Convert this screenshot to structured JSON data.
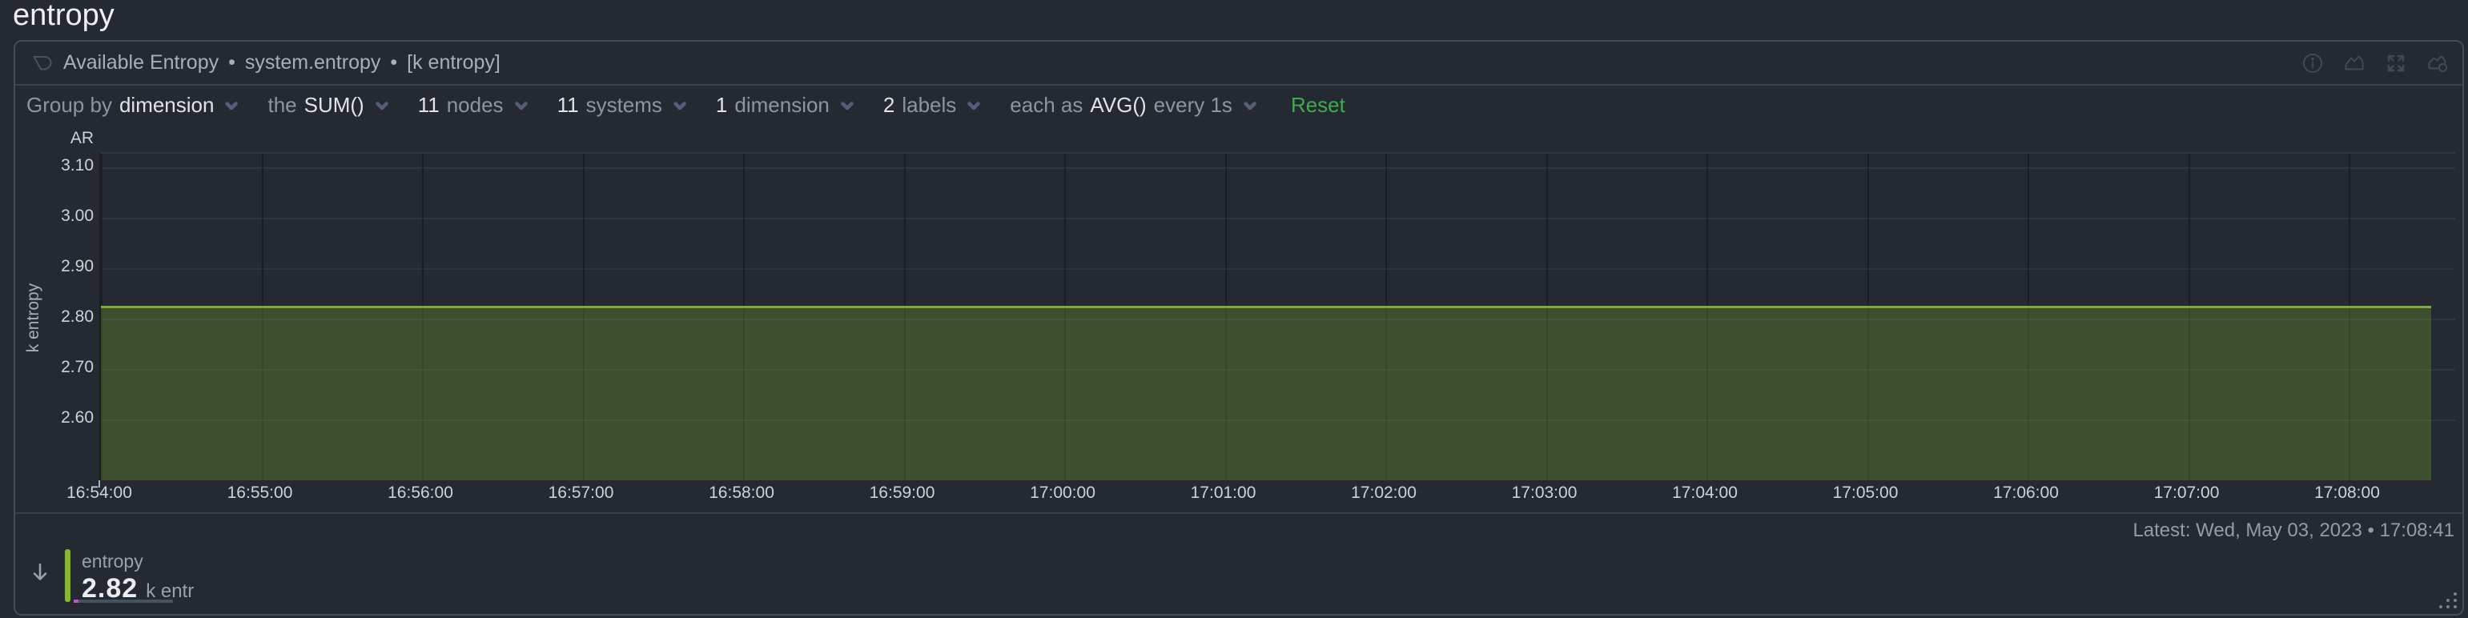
{
  "page": {
    "title": "entropy"
  },
  "header": {
    "logo_icon": "netdata-logo-icon",
    "title": "Available Entropy",
    "sep1": "•",
    "context": "system.entropy",
    "sep2": "•",
    "units": "[k entropy]"
  },
  "toolbar": {
    "group_by_label": "Group by",
    "group_by_value": "dimension",
    "the_label": "the",
    "aggregation_value": "SUM()",
    "nodes_value": "11",
    "nodes_label": "nodes",
    "systems_value": "11",
    "systems_label": "systems",
    "dimensions_value": "1",
    "dimensions_label": "dimension",
    "labels_value": "2",
    "labels_label": "labels",
    "each_as_label": "each as",
    "time_aggregation_value": "AVG()",
    "every_label": "every 1s",
    "reset_label": "Reset"
  },
  "chart_data": {
    "type": "area",
    "title": "Available Entropy",
    "context": "system.entropy",
    "ylabel": "k entropy",
    "anomaly_row_label": "AR",
    "y_ticks": [
      "3.10",
      "3.00",
      "2.90",
      "2.80",
      "2.70",
      "2.60"
    ],
    "x_ticks": [
      "16:54:00",
      "16:55:00",
      "16:56:00",
      "16:57:00",
      "16:58:00",
      "16:59:00",
      "17:00:00",
      "17:01:00",
      "17:02:00",
      "17:03:00",
      "17:04:00",
      "17:05:00",
      "17:06:00",
      "17:07:00",
      "17:08:00"
    ],
    "grid": true,
    "legend_position": "bottom",
    "series": [
      {
        "name": "entropy",
        "value": 2.82,
        "unit": "k entr",
        "line_color": "#7caa3a",
        "fill_color": "rgba(122,165,44,0.30)",
        "legend_color": "#86b62c"
      }
    ]
  },
  "footer": {
    "latest_label": "Latest:",
    "latest_value": "Wed, May 03, 2023 • 17:08:41",
    "legend_name": "entropy",
    "legend_value": "2.82",
    "legend_units": "k entr"
  },
  "colors": {
    "background": "#252a32",
    "container_border": "#454c55",
    "reset_green": "#3fab49",
    "series_line": "#7caa3a",
    "legend_swatch": "#86b62c",
    "anomaly_tip": "#c550cf",
    "axis_text": "#ccd2d8"
  }
}
